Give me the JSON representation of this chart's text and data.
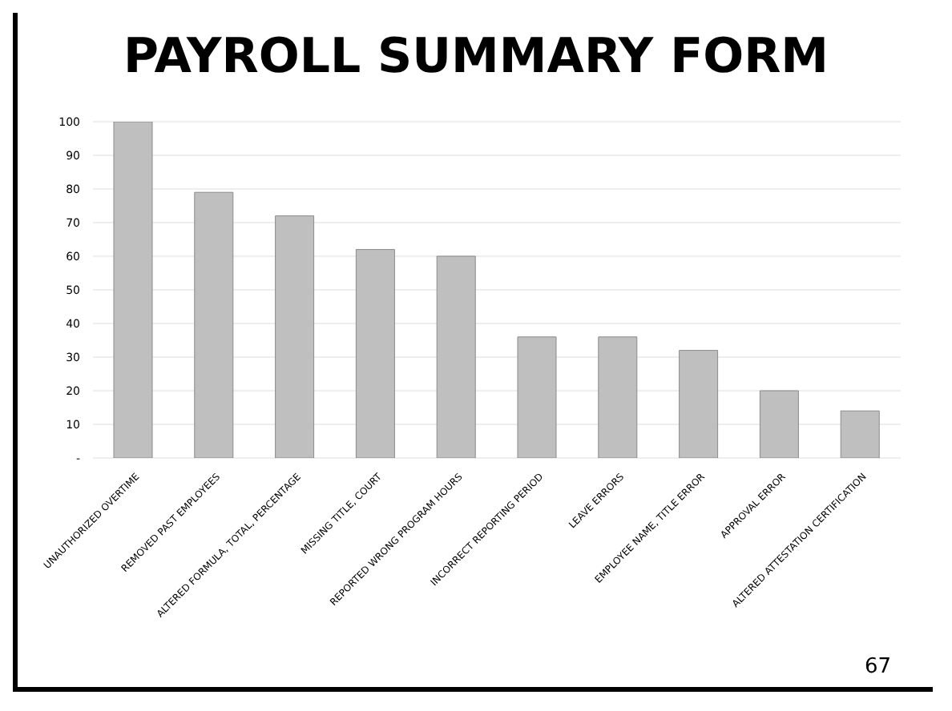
{
  "chart_data": {
    "type": "bar",
    "title": "PAYROLL SUMMARY FORM",
    "categories": [
      "UNAUTHORIZED OVERTIME",
      "REMOVED PAST EMPLOYEES",
      "ALTERED FORMULA, TOTAL, PERCENTAGE",
      "MISSING TITLE, COURT",
      "REPORTED WRONG PROGRAM HOURS",
      "INCORRECT REPORTING PERIOD",
      "LEAVE ERRORS",
      "EMPLOYEE NAME, TITLE ERROR",
      "APPROVAL ERROR",
      "ALTERED ATTESTATION CERTIFICATION"
    ],
    "values": [
      100,
      79,
      72,
      62,
      60,
      36,
      36,
      32,
      20,
      14
    ],
    "color": "#bfbfbf",
    "ylim": [
      0,
      100
    ],
    "yticks": [
      {
        "value": 0,
        "label": "-"
      },
      10,
      20,
      30,
      40,
      50,
      60,
      70,
      80,
      90,
      100
    ],
    "grid": "y",
    "annotations": [
      "67"
    ]
  }
}
